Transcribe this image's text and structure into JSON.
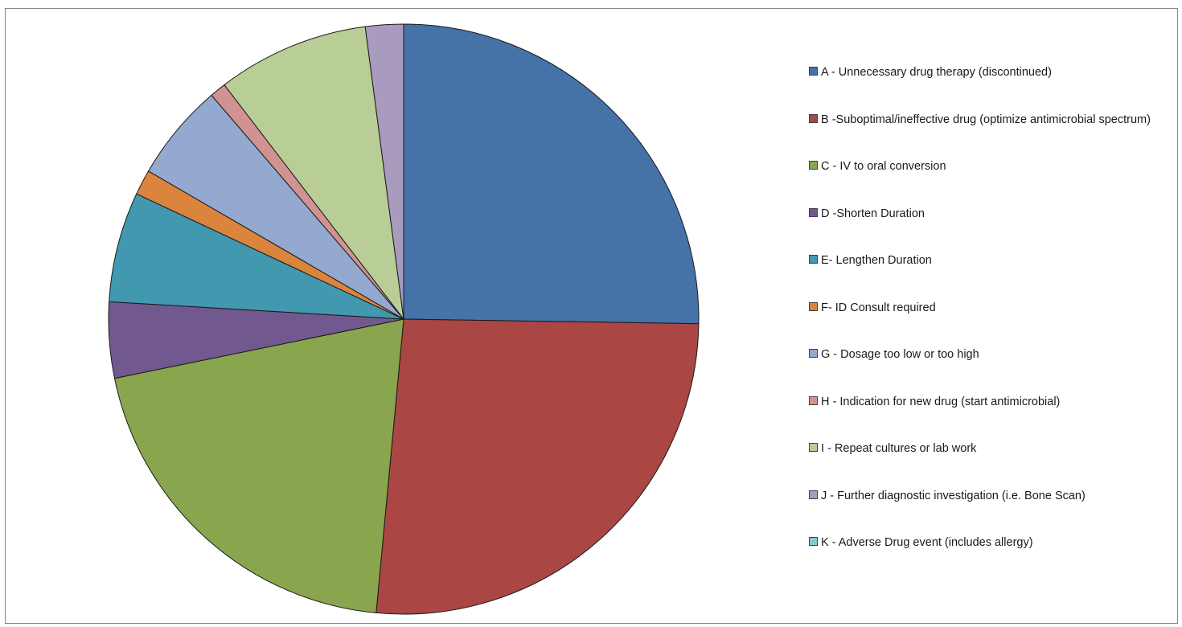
{
  "chart_data": {
    "type": "pie",
    "title": "",
    "slices": [
      {
        "label": "A - Unnecessary drug therapy (discontinued)",
        "value": 25.5,
        "color": "#4572A7"
      },
      {
        "label": "B -Suboptimal/ineffective drug (optimize antimicrobial spectrum)",
        "value": 26.5,
        "color": "#AA4643"
      },
      {
        "label": "C - IV to oral conversion",
        "value": 20.5,
        "color": "#89A54E"
      },
      {
        "label": "D -Shorten Duration",
        "value": 4.2,
        "color": "#71588F"
      },
      {
        "label": "E- Lengthen Duration",
        "value": 6.1,
        "color": "#4198AF"
      },
      {
        "label": "F- ID Consult required",
        "value": 1.4,
        "color": "#DB843D"
      },
      {
        "label": "G - Dosage too low or too high",
        "value": 5.4,
        "color": "#93A9CF"
      },
      {
        "label": "H - Indication for new drug (start antimicrobial)",
        "value": 0.9,
        "color": "#D19392"
      },
      {
        "label": "I - Repeat cultures or lab work",
        "value": 8.4,
        "color": "#B9CD96"
      },
      {
        "label": "J - Further diagnostic investigation (i.e. Bone Scan)",
        "value": 2.1,
        "color": "#A99BBD"
      },
      {
        "label": "K - Adverse Drug event (includes allergy)",
        "value": 0,
        "color": "#91C3D5"
      }
    ],
    "legend_position": "right",
    "start_angle": "12 o'clock",
    "direction": "clockwise"
  }
}
